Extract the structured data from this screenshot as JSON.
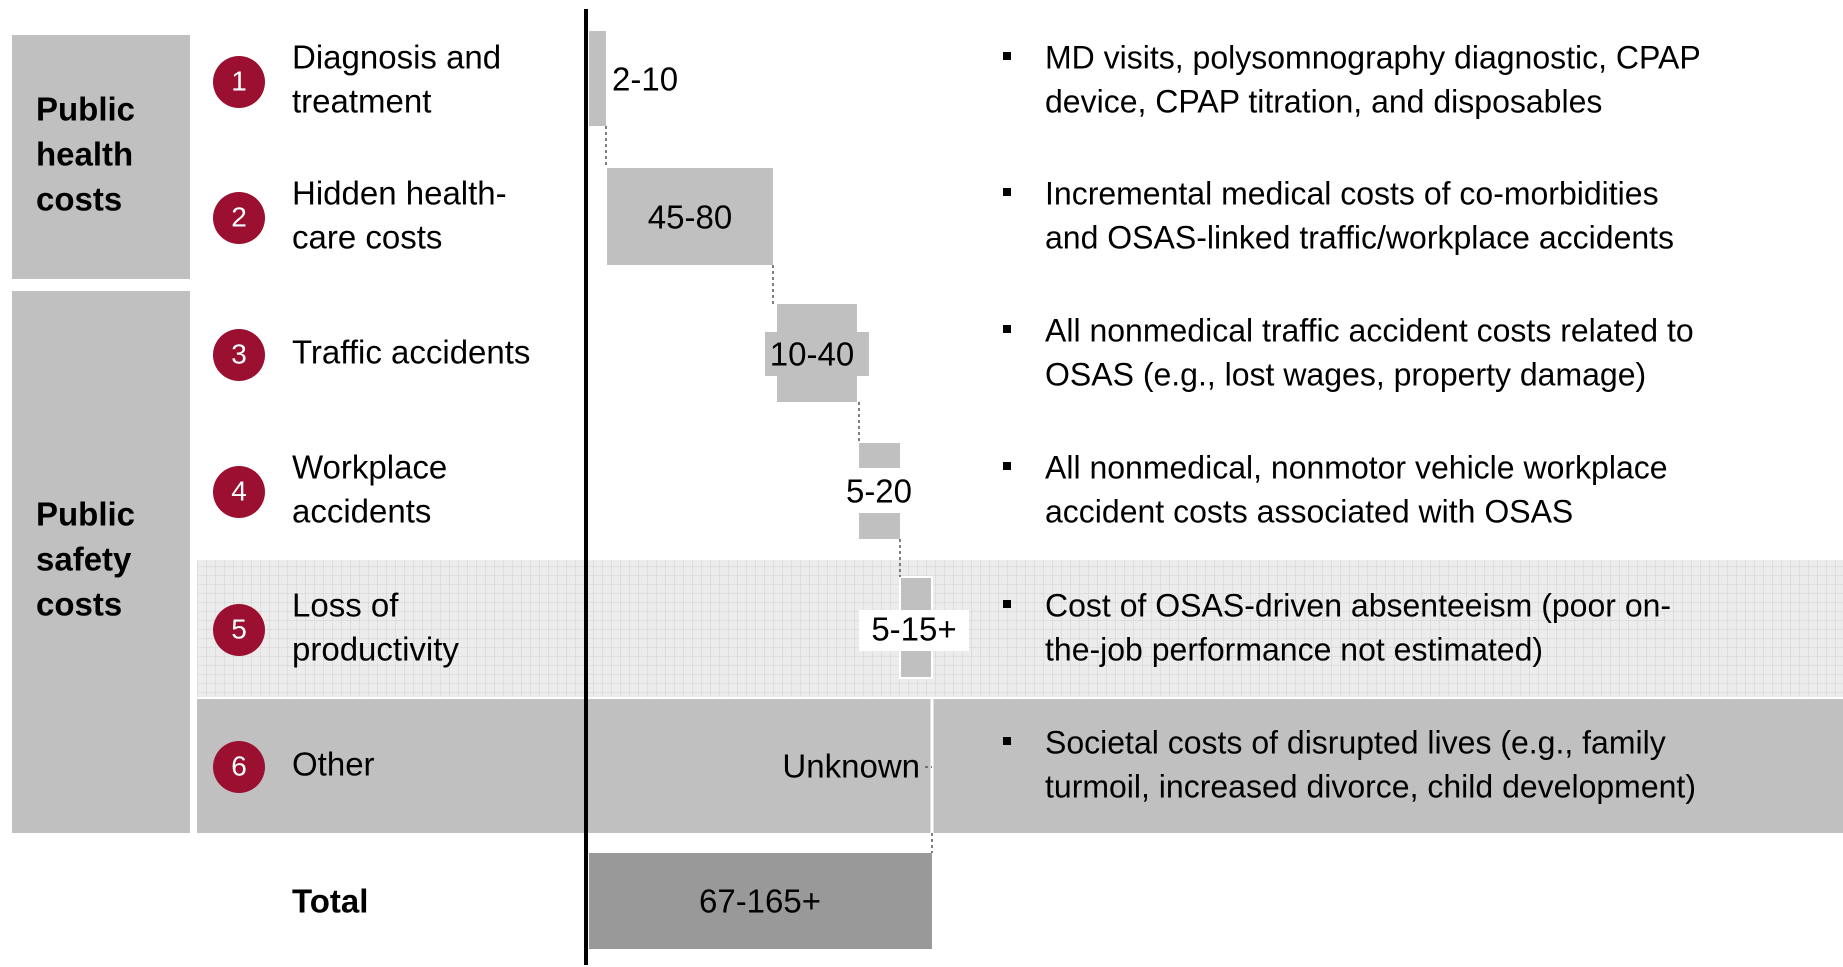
{
  "groups": [
    {
      "lines": [
        "Public",
        "health",
        "costs"
      ]
    },
    {
      "lines": [
        "Public",
        "safety",
        "costs"
      ]
    }
  ],
  "rows": [
    {
      "number": "1",
      "label": [
        "Diagnosis and",
        "treatment"
      ],
      "value": "2-10",
      "description": [
        "MD visits, polysomnography diagnostic, CPAP",
        "device, CPAP titration, and disposables"
      ]
    },
    {
      "number": "2",
      "label": [
        "Hidden health-",
        "care costs"
      ],
      "value": "45-80",
      "description": [
        "Incremental medical costs of co-morbidities",
        "and OSAS-linked traffic/workplace accidents"
      ]
    },
    {
      "number": "3",
      "label": [
        "Traffic accidents"
      ],
      "value": "10-40",
      "description": [
        "All nonmedical traffic accident costs related to",
        "OSAS (e.g., lost wages, property damage)"
      ]
    },
    {
      "number": "4",
      "label": [
        "Workplace",
        "accidents"
      ],
      "value": "5-20",
      "description": [
        "All nonmedical, nonmotor vehicle workplace",
        "accident costs associated with OSAS"
      ]
    },
    {
      "number": "5",
      "label": [
        "Loss of",
        "productivity"
      ],
      "value": "5-15+",
      "description": [
        "Cost of OSAS-driven absenteeism (poor on-",
        "the-job performance not estimated)"
      ]
    },
    {
      "number": "6",
      "label": [
        "Other"
      ],
      "value": "Unknown",
      "description": [
        "Societal costs of disrupted lives (e.g., family",
        "turmoil, increased divorce, child development)"
      ]
    }
  ],
  "total": {
    "label": "Total",
    "value": "67-165+"
  }
}
